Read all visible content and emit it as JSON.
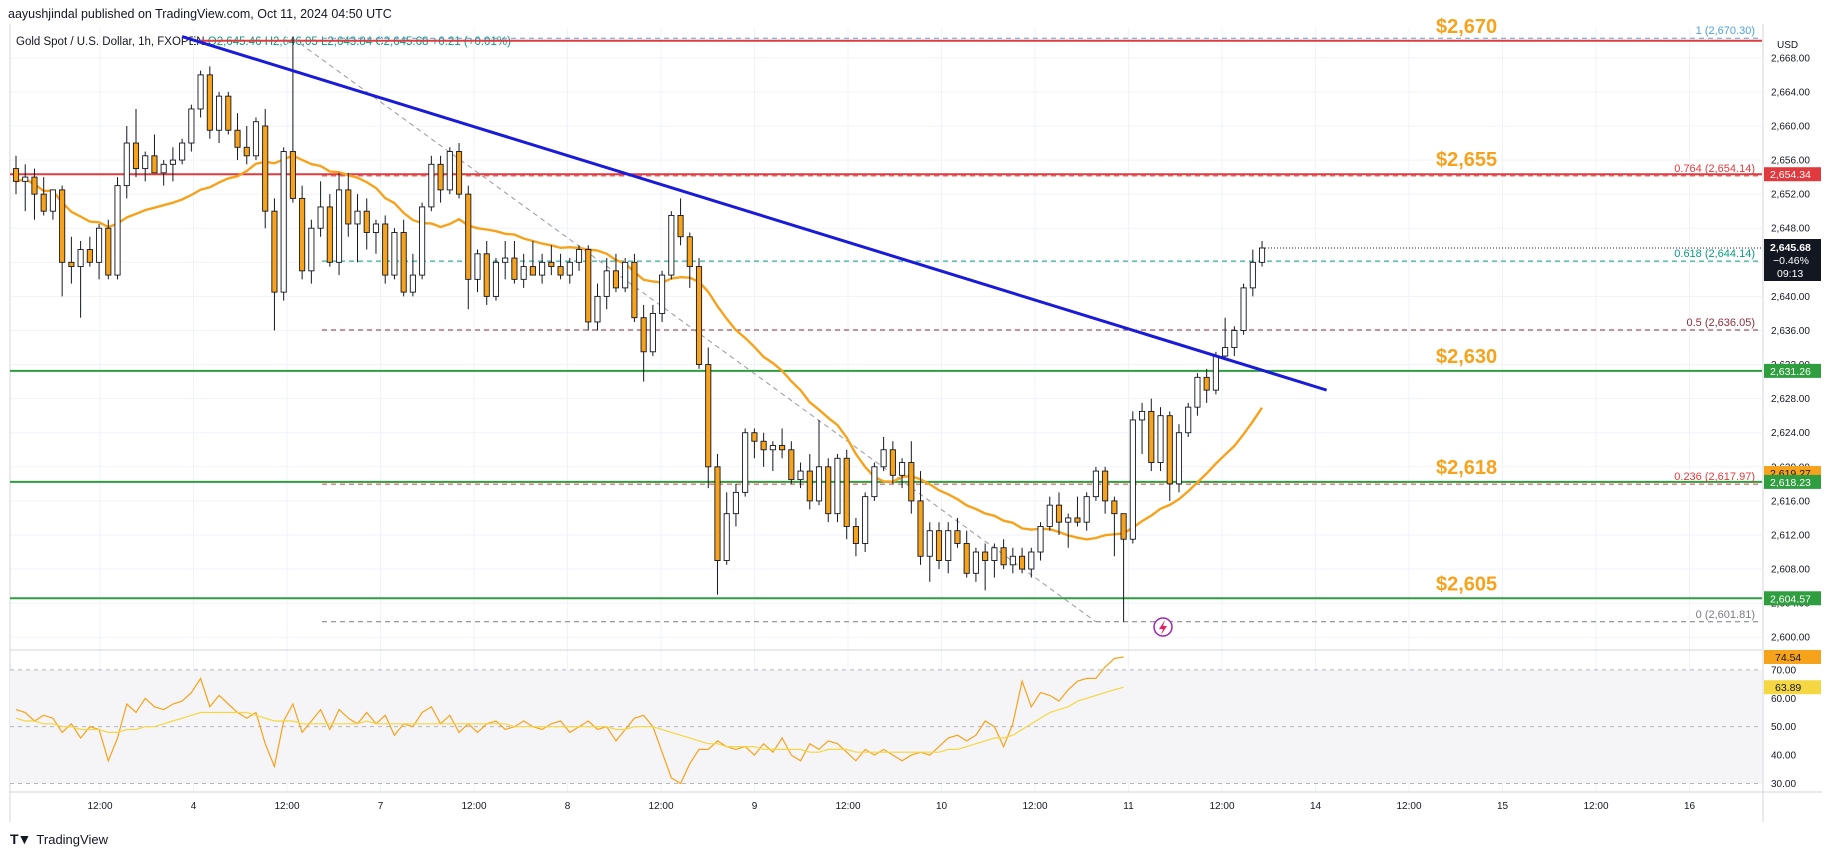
{
  "header": {
    "publisher_line": "aayushjindal published on TradingView.com, Oct 11, 2024 04:50 UTC"
  },
  "symbol_line": {
    "name": "Gold Spot / U.S. Dollar, 1h, FXOPEN",
    "open": "O2,645.46",
    "high": "H2,646.05",
    "low": "L2,643.84",
    "close": "C2,645.68",
    "change": "+0.21 (+0.01%)"
  },
  "footer": {
    "brand": "TradingView"
  },
  "colors": {
    "up_candle": "#ffffff",
    "down_candle": "#f7a21b",
    "candle_outline": "#131722",
    "ma": "#f7a21b",
    "trendline": "#1a1bd9",
    "resistance": "#e03a3e",
    "support": "#2e9e3e",
    "level_label": "#f7a21b",
    "rsi": "#f7a21b",
    "rsi_ma": "#f5d742"
  },
  "chart_data": {
    "type": "candlestick",
    "currency": "USD",
    "y_ticks": [
      "2,668.00",
      "2,664.00",
      "2,660.00",
      "2,656.00",
      "2,652.00",
      "2,648.00",
      "2,644.00",
      "2,640.00",
      "2,636.00",
      "2,632.00",
      "2,628.00",
      "2,624.00",
      "2,620.00",
      "2,616.00",
      "2,612.00",
      "2,608.00",
      "2,604.00",
      "2,600.00"
    ],
    "x_ticks": [
      "12:00",
      "4",
      "12:00",
      "7",
      "12:00",
      "8",
      "12:00",
      "9",
      "12:00",
      "10",
      "12:00",
      "11",
      "12:00",
      "14",
      "12:00",
      "15",
      "12:00",
      "16"
    ],
    "ylim": [
      2598.5,
      2671.5
    ],
    "candles": [
      [
        2655.0,
        2656.5,
        2652.0,
        2653.5
      ],
      [
        2653.5,
        2655.5,
        2650.0,
        2654.0
      ],
      [
        2654.0,
        2655.0,
        2649.0,
        2652.0
      ],
      [
        2652.0,
        2654.0,
        2649.5,
        2650.0
      ],
      [
        2650.0,
        2652.5,
        2649.0,
        2652.5
      ],
      [
        2652.5,
        2653.0,
        2640.0,
        2644.0
      ],
      [
        2644.0,
        2647.0,
        2641.5,
        2643.5
      ],
      [
        2643.5,
        2646.5,
        2637.5,
        2645.5
      ],
      [
        2645.5,
        2647.0,
        2643.5,
        2644.0
      ],
      [
        2644.0,
        2648.5,
        2642.0,
        2648.0
      ],
      [
        2648.0,
        2649.0,
        2642.0,
        2642.5
      ],
      [
        2642.5,
        2654.0,
        2642.0,
        2653.0
      ],
      [
        2653.0,
        2660.0,
        2651.5,
        2658.0
      ],
      [
        2658.0,
        2662.0,
        2654.0,
        2655.0
      ],
      [
        2655.0,
        2657.0,
        2653.5,
        2656.5
      ],
      [
        2656.5,
        2659.0,
        2654.5,
        2654.5
      ],
      [
        2654.5,
        2656.0,
        2653.0,
        2655.5
      ],
      [
        2655.5,
        2657.5,
        2653.5,
        2656.0
      ],
      [
        2656.0,
        2658.5,
        2655.5,
        2658.0
      ],
      [
        2658.0,
        2662.5,
        2657.0,
        2662.0
      ],
      [
        2662.0,
        2666.5,
        2661.0,
        2666.0
      ],
      [
        2666.0,
        2667.0,
        2658.5,
        2659.5
      ],
      [
        2659.5,
        2664.0,
        2658.0,
        2663.5
      ],
      [
        2663.5,
        2664.0,
        2659.0,
        2659.5
      ],
      [
        2659.5,
        2661.5,
        2656.0,
        2657.5
      ],
      [
        2657.5,
        2660.0,
        2655.5,
        2656.5
      ],
      [
        2656.5,
        2661.0,
        2656.0,
        2660.5
      ],
      [
        2660.0,
        2662.0,
        2648.0,
        2650.0
      ],
      [
        2650.0,
        2651.5,
        2636.0,
        2640.5
      ],
      [
        2640.5,
        2657.5,
        2639.5,
        2657.0
      ],
      [
        2657.0,
        2670.5,
        2651.0,
        2651.5
      ],
      [
        2651.5,
        2653.0,
        2642.0,
        2643.0
      ],
      [
        2643.0,
        2649.0,
        2641.5,
        2648.0
      ],
      [
        2648.0,
        2653.5,
        2647.0,
        2650.5
      ],
      [
        2650.5,
        2652.0,
        2643.5,
        2644.0
      ],
      [
        2644.0,
        2654.5,
        2642.5,
        2652.5
      ],
      [
        2652.5,
        2654.5,
        2647.0,
        2648.5
      ],
      [
        2648.5,
        2652.0,
        2644.0,
        2650.0
      ],
      [
        2650.0,
        2651.5,
        2645.5,
        2647.5
      ],
      [
        2647.5,
        2649.0,
        2645.0,
        2648.5
      ],
      [
        2648.5,
        2649.5,
        2641.5,
        2642.5
      ],
      [
        2642.5,
        2648.0,
        2642.0,
        2647.5
      ],
      [
        2647.5,
        2649.0,
        2640.0,
        2640.5
      ],
      [
        2640.5,
        2645.0,
        2640.0,
        2642.5
      ],
      [
        2642.5,
        2651.0,
        2642.0,
        2650.5
      ],
      [
        2650.5,
        2656.5,
        2650.0,
        2655.5
      ],
      [
        2655.5,
        2656.5,
        2651.0,
        2652.5
      ],
      [
        2652.5,
        2657.5,
        2652.0,
        2657.0
      ],
      [
        2657.0,
        2658.0,
        2651.5,
        2652.0
      ],
      [
        2652.0,
        2653.0,
        2638.5,
        2642.0
      ],
      [
        2642.0,
        2645.5,
        2640.5,
        2645.0
      ],
      [
        2645.0,
        2646.5,
        2639.0,
        2640.0
      ],
      [
        2640.0,
        2644.5,
        2639.5,
        2644.0
      ],
      [
        2644.0,
        2646.5,
        2642.0,
        2644.5
      ],
      [
        2644.5,
        2646.5,
        2641.5,
        2642.0
      ],
      [
        2642.0,
        2645.0,
        2641.0,
        2643.5
      ],
      [
        2643.5,
        2646.5,
        2642.5,
        2642.5
      ],
      [
        2642.5,
        2645.0,
        2641.5,
        2644.0
      ],
      [
        2644.0,
        2646.0,
        2642.5,
        2643.5
      ],
      [
        2643.5,
        2645.0,
        2642.0,
        2642.5
      ],
      [
        2642.5,
        2644.5,
        2641.5,
        2644.0
      ],
      [
        2644.0,
        2646.0,
        2643.0,
        2645.5
      ],
      [
        2645.5,
        2646.0,
        2636.0,
        2637.0
      ],
      [
        2637.0,
        2641.5,
        2636.0,
        2640.0
      ],
      [
        2640.0,
        2644.5,
        2638.5,
        2643.0
      ],
      [
        2643.0,
        2645.0,
        2640.5,
        2641.0
      ],
      [
        2641.0,
        2644.5,
        2640.5,
        2644.0
      ],
      [
        2644.0,
        2645.0,
        2637.0,
        2637.5
      ],
      [
        2637.5,
        2639.0,
        2630.0,
        2633.5
      ],
      [
        2633.5,
        2639.0,
        2633.0,
        2638.0
      ],
      [
        2638.0,
        2643.0,
        2637.0,
        2642.5
      ],
      [
        2642.5,
        2650.0,
        2642.0,
        2649.5
      ],
      [
        2649.5,
        2651.5,
        2646.0,
        2647.0
      ],
      [
        2647.0,
        2647.5,
        2641.0,
        2643.5
      ],
      [
        2643.5,
        2644.5,
        2631.5,
        2632.0
      ],
      [
        2632.0,
        2634.0,
        2617.5,
        2620.0
      ],
      [
        2620.0,
        2621.5,
        2605.0,
        2609.0
      ],
      [
        2609.0,
        2617.0,
        2608.5,
        2614.5
      ],
      [
        2614.5,
        2618.0,
        2613.0,
        2617.0
      ],
      [
        2617.0,
        2624.5,
        2616.5,
        2624.0
      ],
      [
        2624.0,
        2624.5,
        2621.0,
        2623.0
      ],
      [
        2623.0,
        2624.0,
        2620.0,
        2622.0
      ],
      [
        2622.0,
        2623.0,
        2619.5,
        2622.5
      ],
      [
        2622.5,
        2624.5,
        2621.0,
        2622.0
      ],
      [
        2622.0,
        2623.0,
        2618.0,
        2618.5
      ],
      [
        2618.5,
        2620.5,
        2617.5,
        2619.5
      ],
      [
        2619.5,
        2621.5,
        2615.0,
        2616.0
      ],
      [
        2616.0,
        2625.5,
        2615.5,
        2620.0
      ],
      [
        2620.0,
        2621.0,
        2613.5,
        2614.5
      ],
      [
        2614.5,
        2621.5,
        2613.5,
        2621.0
      ],
      [
        2621.0,
        2622.0,
        2611.5,
        2613.0
      ],
      [
        2613.0,
        2614.0,
        2609.5,
        2611.0
      ],
      [
        2611.0,
        2617.0,
        2610.0,
        2616.5
      ],
      [
        2616.5,
        2620.5,
        2616.0,
        2620.0
      ],
      [
        2620.0,
        2623.5,
        2619.5,
        2622.0
      ],
      [
        2622.0,
        2623.0,
        2618.0,
        2619.0
      ],
      [
        2619.0,
        2621.0,
        2617.5,
        2620.5
      ],
      [
        2620.5,
        2623.0,
        2614.5,
        2616.0
      ],
      [
        2616.0,
        2619.5,
        2608.5,
        2609.5
      ],
      [
        2609.5,
        2613.5,
        2606.5,
        2612.5
      ],
      [
        2612.5,
        2613.5,
        2608.0,
        2609.0
      ],
      [
        2609.0,
        2613.5,
        2607.5,
        2612.5
      ],
      [
        2612.5,
        2614.0,
        2610.5,
        2611.0
      ],
      [
        2611.0,
        2612.5,
        2607.0,
        2607.5
      ],
      [
        2607.5,
        2610.5,
        2606.5,
        2610.0
      ],
      [
        2610.0,
        2611.0,
        2605.5,
        2609.0
      ],
      [
        2609.0,
        2611.0,
        2607.0,
        2610.5
      ],
      [
        2610.5,
        2611.5,
        2608.0,
        2608.5
      ],
      [
        2608.5,
        2610.5,
        2607.5,
        2609.5
      ],
      [
        2609.5,
        2610.5,
        2607.5,
        2608.0
      ],
      [
        2608.0,
        2610.5,
        2607.0,
        2610.0
      ],
      [
        2610.0,
        2613.5,
        2609.0,
        2613.0
      ],
      [
        2613.0,
        2616.5,
        2612.5,
        2615.5
      ],
      [
        2615.5,
        2617.0,
        2612.0,
        2613.5
      ],
      [
        2613.5,
        2614.5,
        2610.5,
        2614.0
      ],
      [
        2614.0,
        2616.5,
        2613.0,
        2613.5
      ],
      [
        2613.5,
        2617.0,
        2612.5,
        2616.5
      ],
      [
        2616.5,
        2620.0,
        2616.0,
        2619.5
      ],
      [
        2619.5,
        2620.0,
        2614.5,
        2616.0
      ],
      [
        2616.0,
        2616.5,
        2609.5,
        2614.5
      ],
      [
        2614.5,
        2614.5,
        2601.8,
        2611.5
      ],
      [
        2611.5,
        2626.5,
        2611.0,
        2625.5
      ],
      [
        2625.5,
        2627.5,
        2621.5,
        2626.5
      ],
      [
        2626.5,
        2628.0,
        2619.5,
        2620.5
      ],
      [
        2620.5,
        2627.0,
        2619.5,
        2626.0
      ],
      [
        2626.0,
        2626.5,
        2616.0,
        2618.0
      ],
      [
        2618.0,
        2625.0,
        2617.0,
        2624.0
      ],
      [
        2624.0,
        2627.5,
        2623.5,
        2627.0
      ],
      [
        2627.0,
        2631.0,
        2626.0,
        2630.5
      ],
      [
        2630.5,
        2631.5,
        2627.5,
        2629.0
      ],
      [
        2629.0,
        2633.5,
        2628.5,
        2633.0
      ],
      [
        2633.0,
        2637.5,
        2632.5,
        2634.0
      ],
      [
        2634.0,
        2636.5,
        2633.0,
        2636.0
      ],
      [
        2636.0,
        2641.5,
        2635.5,
        2641.0
      ],
      [
        2641.0,
        2645.5,
        2640.0,
        2644.0
      ],
      [
        2644.0,
        2646.5,
        2643.5,
        2645.68
      ]
    ],
    "levels": [
      {
        "label": "$2,670",
        "type": "resistance",
        "price": 2670.0
      },
      {
        "label": "$2,655",
        "type": "resistance",
        "price": 2654.34
      },
      {
        "label": "$2,630",
        "type": "support",
        "price": 2631.26
      },
      {
        "label": "$2,618",
        "type": "support",
        "price": 2618.23
      },
      {
        "label": "$2,605",
        "type": "support",
        "price": 2604.57
      }
    ],
    "fib_levels": [
      {
        "label": "1 (2,670.30)",
        "price": 2670.3,
        "color": "#4da3d9"
      },
      {
        "label": "0.764 (2,654.14)",
        "price": 2654.14,
        "color": "#e03a3e"
      },
      {
        "label": "0.618 (2,644.14)",
        "price": 2644.14,
        "color": "#089981"
      },
      {
        "label": "0.5 (2,636.05)",
        "price": 2636.05,
        "color": "#8c2e3a"
      },
      {
        "label": "0.236 (2,617.97)",
        "price": 2617.97,
        "color": "#e03a3e"
      },
      {
        "label": "0 (2,601.81)",
        "price": 2601.81,
        "color": "#787b86"
      }
    ],
    "price_tags": [
      {
        "text": "2,654.34",
        "price": 2654.34,
        "bg": "#e03a3e",
        "fg": "#ffffff"
      },
      {
        "text": "2,631.26",
        "price": 2631.26,
        "bg": "#2e9e3e",
        "fg": "#ffffff"
      },
      {
        "text": "2,619.27",
        "price": 2619.27,
        "bg": "#f7a21b",
        "fg": "#131722"
      },
      {
        "text": "2,618.23",
        "price": 2618.23,
        "bg": "#2e9e3e",
        "fg": "#ffffff"
      },
      {
        "text": "2,604.57",
        "price": 2604.57,
        "bg": "#2e9e3e",
        "fg": "#ffffff"
      }
    ],
    "last_price": {
      "price": 2645.68,
      "value": "2,645.68",
      "change": "−0.46%",
      "countdown": "09:13"
    },
    "trendline": {
      "from": [
        18,
        2670.5
      ],
      "to": [
        142,
        2629.0
      ]
    },
    "rsi": {
      "ticks": [
        "70.00",
        "60.00",
        "50.00",
        "40.00",
        "30.00"
      ],
      "ylim": [
        27,
        77
      ],
      "upper": 70,
      "middle": 50,
      "lower": 30,
      "value_tag": "74.54",
      "ma_tag": "63.89",
      "values": [
        56,
        55,
        52,
        54,
        53,
        48,
        51,
        46,
        50,
        49,
        38,
        46,
        58,
        55,
        60,
        57,
        56,
        58,
        59,
        62,
        67,
        57,
        61,
        58,
        55,
        53,
        55,
        44,
        36,
        52,
        58,
        48,
        52,
        56,
        49,
        56,
        53,
        51,
        55,
        51,
        54,
        47,
        51,
        50,
        55,
        57,
        51,
        54,
        48,
        51,
        48,
        51,
        52,
        49,
        50,
        52,
        50,
        49,
        51,
        52,
        48,
        50,
        52,
        49,
        50,
        45,
        49,
        53,
        54,
        50,
        41,
        32,
        30,
        37,
        42,
        42,
        45,
        43,
        42,
        43,
        40,
        44,
        41,
        46,
        40,
        38,
        44,
        42,
        45,
        44,
        41,
        38,
        42,
        40,
        42,
        40,
        38,
        40,
        41,
        40,
        43,
        46,
        47,
        45,
        47,
        52,
        50,
        43,
        51,
        66,
        57,
        62,
        61,
        59,
        63,
        66,
        67,
        67,
        71,
        74,
        74.54
      ],
      "ma_values": [
        53,
        52,
        52,
        51,
        51,
        50,
        50,
        49,
        49,
        49,
        48,
        48,
        49,
        49,
        50,
        50,
        51,
        52,
        53,
        54,
        55,
        55,
        55,
        55,
        55,
        55,
        54,
        53,
        52,
        52,
        52,
        51,
        51,
        51,
        51,
        51,
        51,
        51,
        52,
        51,
        51,
        51,
        51,
        51,
        51,
        51,
        51,
        51,
        51,
        51,
        51,
        51,
        51,
        51,
        50,
        50,
        50,
        50,
        50,
        50,
        50,
        50,
        50,
        50,
        50,
        49,
        49,
        50,
        50,
        50,
        49,
        48,
        47,
        46,
        45,
        44,
        44,
        43,
        43,
        43,
        43,
        42,
        42,
        42,
        42,
        42,
        41,
        41,
        42,
        42,
        42,
        41,
        41,
        41,
        41,
        41,
        41,
        41,
        41,
        41,
        41,
        42,
        42,
        43,
        44,
        45,
        46,
        46,
        47,
        49,
        51,
        53,
        55,
        56,
        57,
        59,
        60,
        61,
        62,
        63,
        63.89
      ]
    }
  }
}
